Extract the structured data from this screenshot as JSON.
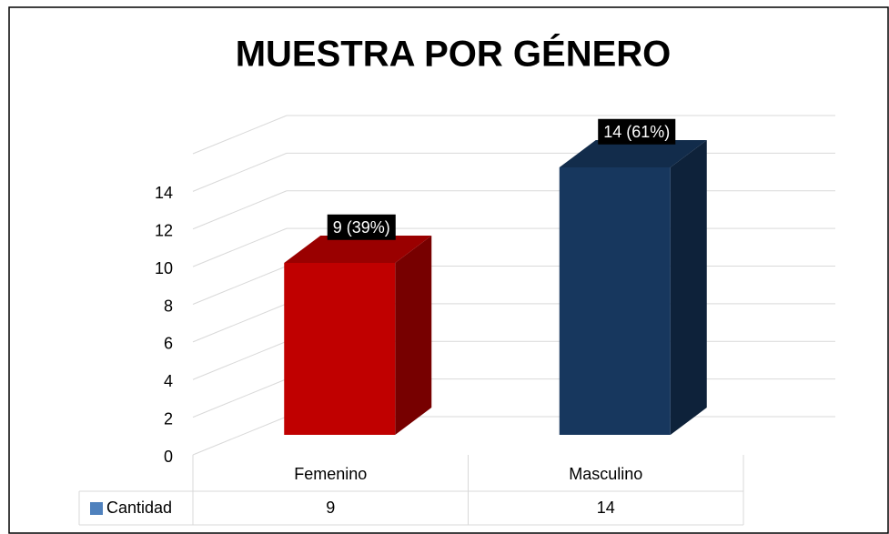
{
  "chart_data": {
    "type": "bar3d",
    "title": "MUESTRA POR GÉNERO",
    "categories": [
      "Femenino",
      "Masculino"
    ],
    "series": [
      {
        "name": "Cantidad",
        "color": "#4f81bd",
        "values": [
          9,
          14
        ],
        "value_labels": [
          "9 (39%)",
          "14 (61%)"
        ],
        "colors": [
          "#c00000",
          "#17375e"
        ]
      }
    ],
    "ylim": [
      0,
      16
    ],
    "yticks": [
      0,
      2,
      4,
      6,
      8,
      10,
      12,
      14
    ],
    "grid": true
  }
}
